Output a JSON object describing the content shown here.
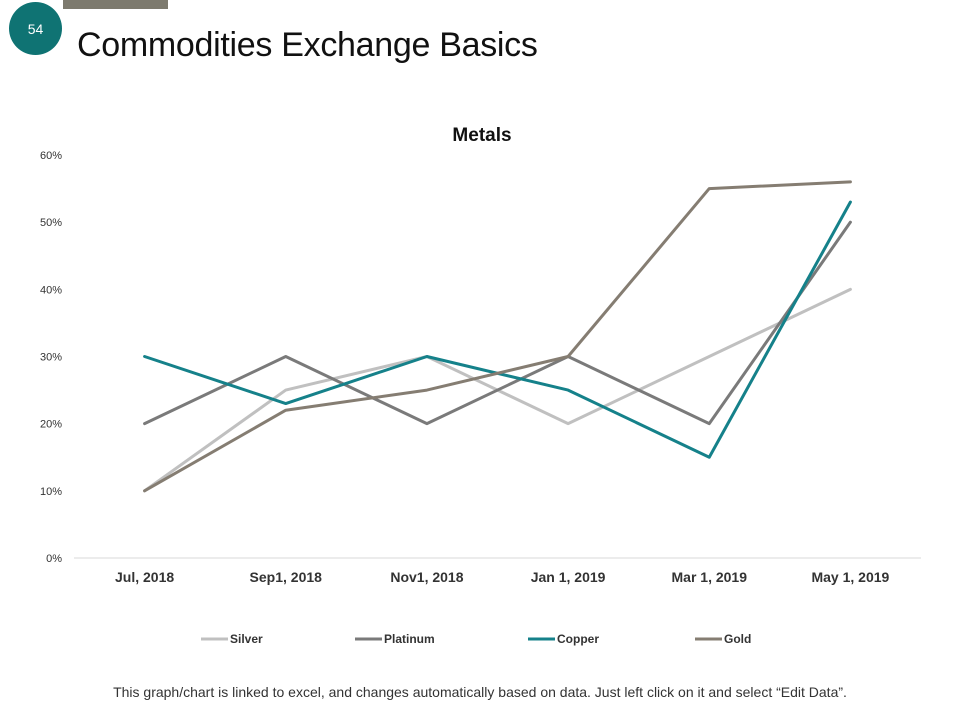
{
  "slide": {
    "number": "54",
    "title": "Commodities Exchange Basics",
    "footnote": "This graph/chart is linked to excel, and changes automatically based on data. Just left click on it and select “Edit Data”."
  },
  "colors": {
    "badge": "#0f7373",
    "top_bar": "#7d7a6e"
  },
  "chart_data": {
    "type": "line",
    "title": "Metals",
    "xlabel": "",
    "ylabel": "",
    "categories": [
      "Jul, 2018",
      "Sep1, 2018",
      "Nov1, 2018",
      "Jan 1, 2019",
      "Mar 1, 2019",
      "May 1, 2019"
    ],
    "ylim": [
      0,
      60
    ],
    "yticks": [
      0,
      10,
      20,
      30,
      40,
      50,
      60
    ],
    "ytick_labels": [
      "0%",
      "10%",
      "20%",
      "30%",
      "40%",
      "50%",
      "60%"
    ],
    "grid": false,
    "legend": "bottom",
    "series": [
      {
        "name": "Silver",
        "color": "#c0c0c0",
        "values": [
          10,
          25,
          30,
          20,
          30,
          40
        ]
      },
      {
        "name": "Platinum",
        "color": "#7a7a7a",
        "values": [
          20,
          30,
          20,
          30,
          20,
          50
        ]
      },
      {
        "name": "Copper",
        "color": "#15818a",
        "values": [
          30,
          23,
          30,
          25,
          15,
          53
        ]
      },
      {
        "name": "Gold",
        "color": "#857d72",
        "values": [
          10,
          22,
          25,
          30,
          55,
          56
        ]
      }
    ]
  }
}
